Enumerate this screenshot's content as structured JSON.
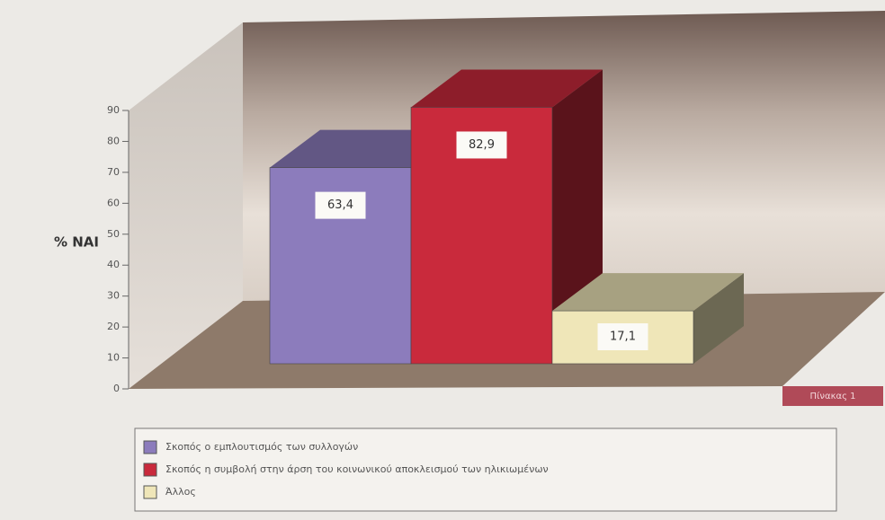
{
  "chart_data": {
    "type": "bar3d",
    "categories": [
      "Σκοπός ο εμπλουτισμός των συλλογών",
      "Σκοπός η συμβολή στην άρση του κοινωνικού αποκλεισμού των ηλικιωμένων",
      "Άλλος"
    ],
    "values": [
      63.4,
      82.9,
      17.1
    ],
    "value_labels": [
      "63,4",
      "82,9",
      "17,1"
    ],
    "colors": [
      "#8c7cbc",
      "#c92a3c",
      "#efe6b8"
    ],
    "ylabel": "% ΝΑΙ",
    "annotation": "Πίνακας 1",
    "ylim": [
      0,
      90
    ],
    "yticks": [
      0,
      10,
      20,
      30,
      40,
      50,
      60,
      70,
      80,
      90
    ]
  }
}
